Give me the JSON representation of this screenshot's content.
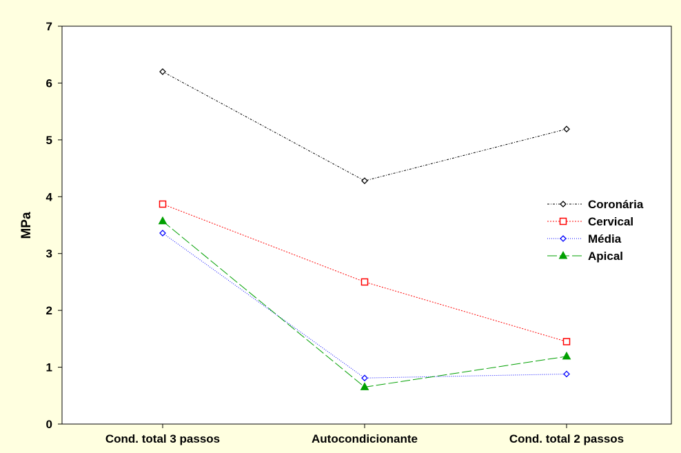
{
  "chart_data": {
    "type": "line",
    "title": "",
    "xlabel": "",
    "ylabel": "MPa",
    "ylim": [
      0,
      7
    ],
    "yticks": [
      0,
      1,
      2,
      3,
      4,
      5,
      6,
      7
    ],
    "categories": [
      "Cond. total 3 passos",
      "Autocondicionante",
      "Cond. total 2 passos"
    ],
    "grid": false,
    "legend_position": "right",
    "series": [
      {
        "name": "Coronária",
        "values": [
          6.2,
          4.28,
          5.19
        ],
        "color": "#000000",
        "marker": "diamond",
        "dash": "3,2,1,2"
      },
      {
        "name": "Cervical",
        "values": [
          3.87,
          2.5,
          1.45
        ],
        "color": "#ff0000",
        "marker": "square",
        "dash": "2,2"
      },
      {
        "name": "Média",
        "values": [
          3.36,
          0.81,
          0.88
        ],
        "color": "#0000ff",
        "marker": "diamond",
        "dash": "1,2"
      },
      {
        "name": "Apical",
        "values": [
          3.57,
          0.65,
          1.19
        ],
        "color": "#00a000",
        "marker": "triangle",
        "dash": "14,4"
      }
    ]
  }
}
